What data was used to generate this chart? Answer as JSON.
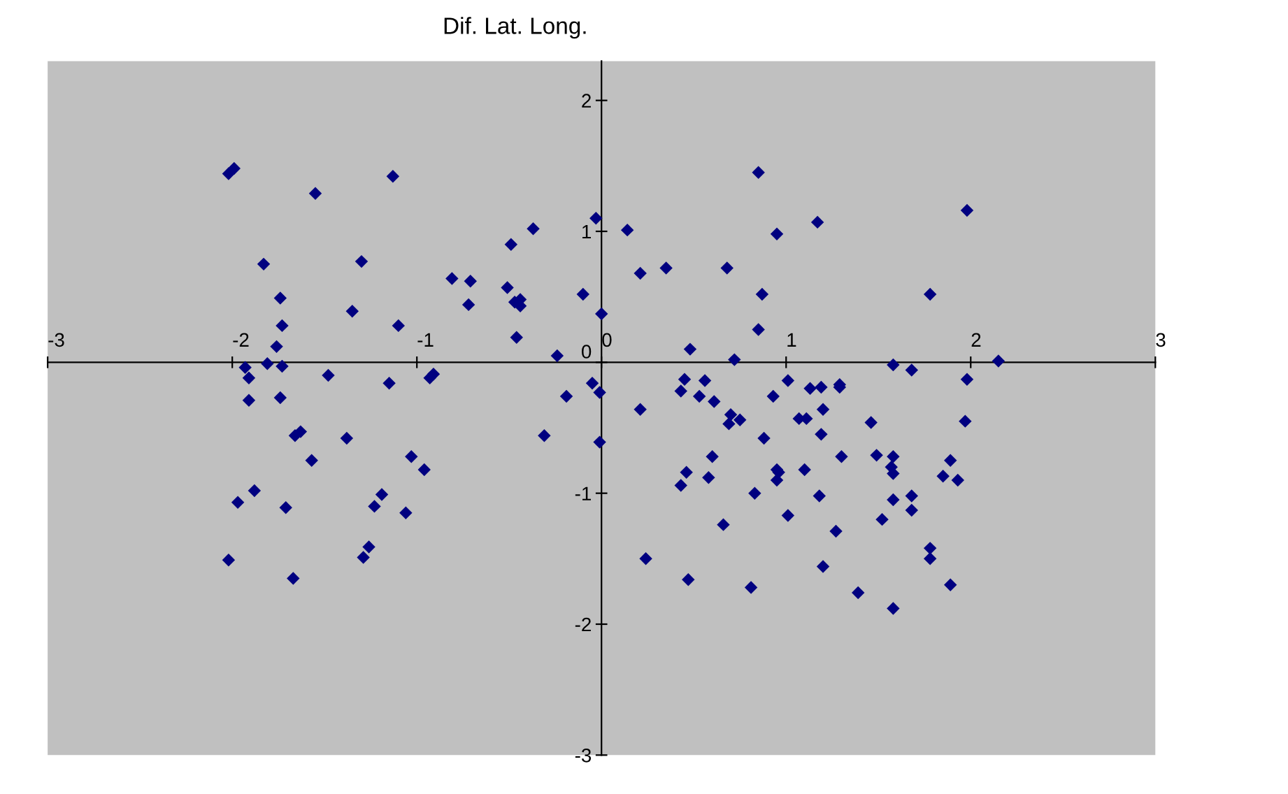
{
  "chart_data": {
    "type": "scatter",
    "title": "Dif. Lat. Long.",
    "marker": "diamond",
    "grid": false,
    "xlim": [
      -3,
      3
    ],
    "xticks": [
      -3,
      -2,
      -1,
      0,
      1,
      2,
      3
    ],
    "ylim": [
      -3,
      2.3
    ],
    "yticks": [
      -3,
      -2,
      -1,
      0,
      1,
      2
    ],
    "series": [
      {
        "color": "#000080",
        "x": [
          -2.02,
          -1.99,
          -1.55,
          -1.13,
          -1.83,
          -1.3,
          -1.74,
          -1.35,
          -1.73,
          -1.1,
          -1.76,
          -0.81,
          -0.71,
          -0.72,
          -0.49,
          -0.37,
          -0.51,
          -0.47,
          -0.44,
          -0.44,
          -0.46,
          -0.1,
          -0.03,
          0.0,
          -0.24,
          -1.93,
          -1.81,
          -1.73,
          -1.91,
          -1.48,
          -1.15,
          -0.93,
          -0.91,
          -1.91,
          -1.74,
          -1.66,
          -1.63,
          -1.38,
          -1.57,
          -1.03,
          -0.96,
          -1.88,
          -1.97,
          -1.71,
          -1.19,
          -1.23,
          -1.06,
          -1.26,
          -1.29,
          -2.02,
          -1.67,
          -0.31,
          -0.19,
          -0.05,
          -0.01,
          -0.01,
          0.14,
          0.21,
          0.35,
          0.68,
          0.85,
          0.95,
          1.17,
          1.98,
          0.87,
          1.78,
          0.85,
          0.48,
          0.72,
          2.15,
          1.58,
          1.68,
          0.45,
          0.43,
          0.56,
          0.53,
          0.61,
          0.21,
          0.7,
          0.69,
          0.75,
          1.01,
          0.93,
          1.13,
          1.19,
          1.29,
          1.29,
          1.2,
          1.07,
          1.11,
          1.19,
          0.88,
          1.46,
          1.98,
          1.97,
          0.6,
          0.46,
          0.43,
          0.58,
          0.95,
          0.96,
          0.95,
          1.1,
          1.3,
          1.49,
          1.58,
          1.57,
          1.58,
          1.89,
          1.85,
          1.93,
          0.83,
          1.18,
          1.58,
          1.68,
          1.68,
          1.01,
          0.66,
          1.52,
          1.27,
          1.78,
          1.78,
          0.24,
          1.2,
          0.47,
          0.81,
          1.39,
          1.89,
          1.58
        ],
        "values": [
          1.44,
          1.48,
          1.29,
          1.42,
          0.75,
          0.77,
          0.49,
          0.39,
          0.28,
          0.28,
          0.12,
          0.64,
          0.62,
          0.44,
          0.9,
          1.02,
          0.57,
          0.46,
          0.48,
          0.43,
          0.19,
          0.52,
          1.1,
          0.37,
          0.05,
          -0.04,
          -0.01,
          -0.03,
          -0.12,
          -0.1,
          -0.16,
          -0.12,
          -0.09,
          -0.29,
          -0.27,
          -0.56,
          -0.53,
          -0.58,
          -0.75,
          -0.72,
          -0.82,
          -0.98,
          -1.07,
          -1.11,
          -1.01,
          -1.1,
          -1.15,
          -1.41,
          -1.49,
          -1.51,
          -1.65,
          -0.56,
          -0.26,
          -0.16,
          -0.23,
          -0.61,
          1.01,
          0.68,
          0.72,
          0.72,
          1.45,
          0.98,
          1.07,
          1.16,
          0.52,
          0.52,
          0.25,
          0.1,
          0.02,
          0.01,
          -0.02,
          -0.06,
          -0.13,
          -0.22,
          -0.14,
          -0.26,
          -0.3,
          -0.36,
          -0.4,
          -0.47,
          -0.44,
          -0.14,
          -0.26,
          -0.2,
          -0.19,
          -0.17,
          -0.19,
          -0.36,
          -0.43,
          -0.43,
          -0.55,
          -0.58,
          -0.46,
          -0.13,
          -0.45,
          -0.72,
          -0.84,
          -0.94,
          -0.88,
          -0.82,
          -0.84,
          -0.9,
          -0.82,
          -0.72,
          -0.71,
          -0.72,
          -0.8,
          -0.85,
          -0.75,
          -0.87,
          -0.9,
          -1.0,
          -1.02,
          -1.05,
          -1.02,
          -1.13,
          -1.17,
          -1.24,
          -1.2,
          -1.29,
          -1.42,
          -1.5,
          -1.5,
          -1.56,
          -1.66,
          -1.72,
          -1.76,
          -1.7,
          -1.88
        ]
      }
    ]
  }
}
